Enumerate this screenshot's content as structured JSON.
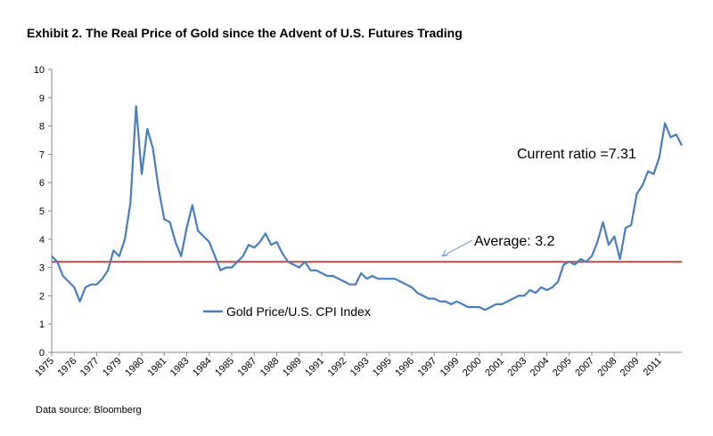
{
  "chart_data": {
    "type": "line",
    "title": "Exhibit 2. The Real Price of Gold since the Advent of U.S. Futures Trading",
    "source": "Data source: Bloomberg",
    "categories": [
      "1975",
      null,
      null,
      null,
      "1976",
      null,
      null,
      null,
      "1977",
      null,
      null,
      null,
      "1979",
      null,
      null,
      null,
      "1980",
      null,
      null,
      null,
      "1981",
      null,
      null,
      null,
      "1983",
      null,
      null,
      null,
      "1984",
      null,
      null,
      null,
      "1985",
      null,
      null,
      null,
      "1987",
      null,
      null,
      null,
      "1988",
      null,
      null,
      null,
      "1989",
      null,
      null,
      null,
      "1991",
      null,
      null,
      null,
      "1992",
      null,
      null,
      null,
      "1993",
      null,
      null,
      null,
      "1995",
      null,
      null,
      null,
      "1996",
      null,
      null,
      null,
      "1997",
      null,
      null,
      null,
      "1999",
      null,
      null,
      null,
      "2000",
      null,
      null,
      null,
      "2001",
      null,
      null,
      null,
      "2003",
      null,
      null,
      null,
      "2004",
      null,
      null,
      null,
      "2005",
      null,
      null,
      null,
      "2007",
      null,
      null,
      null,
      "2008",
      null,
      null,
      null,
      "2009",
      null,
      null,
      null,
      "2011",
      null,
      null,
      null,
      null
    ],
    "series": [
      {
        "name": "Gold Price/U.S. CPI Index",
        "color": "#4a7ebb",
        "values": [
          3.4,
          3.2,
          2.7,
          2.5,
          2.3,
          1.8,
          2.3,
          2.4,
          2.4,
          2.6,
          2.9,
          3.6,
          3.4,
          4.0,
          5.3,
          8.7,
          6.3,
          7.9,
          7.2,
          5.8,
          4.7,
          4.6,
          3.9,
          3.4,
          4.4,
          5.2,
          4.3,
          4.1,
          3.9,
          3.4,
          2.9,
          3.0,
          3.0,
          3.2,
          3.4,
          3.8,
          3.7,
          3.9,
          4.2,
          3.8,
          3.9,
          3.5,
          3.2,
          3.1,
          3.0,
          3.2,
          2.9,
          2.9,
          2.8,
          2.7,
          2.7,
          2.6,
          2.5,
          2.4,
          2.4,
          2.8,
          2.6,
          2.7,
          2.6,
          2.6,
          2.6,
          2.6,
          2.5,
          2.4,
          2.3,
          2.1,
          2.0,
          1.9,
          1.9,
          1.8,
          1.8,
          1.7,
          1.8,
          1.7,
          1.6,
          1.6,
          1.6,
          1.5,
          1.6,
          1.7,
          1.7,
          1.8,
          1.9,
          2.0,
          2.0,
          2.2,
          2.1,
          2.3,
          2.2,
          2.3,
          2.5,
          3.1,
          3.2,
          3.1,
          3.3,
          3.2,
          3.4,
          3.9,
          4.6,
          3.8,
          4.1,
          3.3,
          4.4,
          4.5,
          5.6,
          5.9,
          6.4,
          6.3,
          6.9,
          8.1,
          7.6,
          7.7,
          7.31
        ]
      }
    ],
    "reference_line": {
      "value": 3.2,
      "label": "Average: 3.2",
      "color": "#be4b48"
    },
    "annotation": "Current ratio =7.31",
    "ylim": [
      0,
      10
    ],
    "yticks": [
      0,
      1,
      2,
      3,
      4,
      5,
      6,
      7,
      8,
      9,
      10
    ]
  }
}
